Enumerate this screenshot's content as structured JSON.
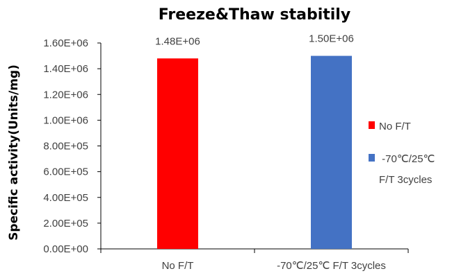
{
  "chart_data": {
    "type": "bar",
    "title": "Freeze&Thaw stabitily",
    "xlabel": "",
    "ylabel": "Specific activity(Units/mg)",
    "categories": [
      "No F/T",
      "-70℃/25℃  F/T 3cycles"
    ],
    "values": [
      1480000,
      1500000
    ],
    "data_labels": [
      "1.48E+06",
      "1.50E+06"
    ],
    "colors": [
      "#FF0000",
      "#4472C4"
    ],
    "ylim": [
      0,
      1600000
    ],
    "yticks": [
      0,
      200000,
      400000,
      600000,
      800000,
      1000000,
      1200000,
      1400000,
      1600000
    ],
    "ytick_labels": [
      "0.00E+00",
      "2.00E+05",
      "4.00E+05",
      "6.00E+05",
      "8.00E+05",
      "1.00E+06",
      "1.20E+06",
      "1.40E+06",
      "1.60E+06"
    ],
    "legend": {
      "position": "right",
      "entries": [
        {
          "lines": [
            "No F/T"
          ],
          "color": "#FF0000"
        },
        {
          "lines": [
            " -70℃/25℃",
            "F/T 3cycles"
          ],
          "color": "#4472C4"
        }
      ]
    },
    "grid": false
  }
}
